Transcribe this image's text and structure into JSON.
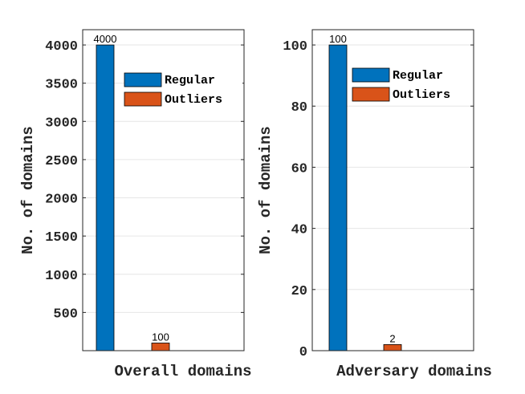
{
  "chart_data": [
    {
      "type": "bar",
      "categories": [
        "Regular",
        "Outliers"
      ],
      "values": [
        4000,
        100
      ],
      "data_labels": [
        "4000",
        "100"
      ],
      "series": [
        {
          "name": "Regular",
          "values": [
            4000,
            null
          ],
          "color": "#0072BD"
        },
        {
          "name": "Outliers",
          "values": [
            null,
            100
          ],
          "color": "#D95319"
        }
      ],
      "title": "",
      "xlabel": "Overall domains",
      "ylabel": "No. of domains",
      "ylim": [
        0,
        4200
      ],
      "yticks": [
        500,
        1000,
        1500,
        2000,
        2500,
        3000,
        3500,
        4000
      ],
      "ytick_labels": [
        "500",
        "1000",
        "1500",
        "2000",
        "2500",
        "3000",
        "3500",
        "4000"
      ],
      "grid": "horizontal",
      "legend": {
        "placement": "top-right",
        "entries": [
          "Regular",
          "Outliers"
        ]
      }
    },
    {
      "type": "bar",
      "categories": [
        "Regular",
        "Outliers"
      ],
      "values": [
        100,
        2
      ],
      "data_labels": [
        "100",
        "2"
      ],
      "series": [
        {
          "name": "Regular",
          "values": [
            100,
            null
          ],
          "color": "#0072BD"
        },
        {
          "name": "Outliers",
          "values": [
            null,
            2
          ],
          "color": "#D95319"
        }
      ],
      "title": "",
      "xlabel": "Adversary domains",
      "ylabel": "No. of domains",
      "ylim": [
        0,
        105
      ],
      "yticks": [
        0,
        20,
        40,
        60,
        80,
        100
      ],
      "ytick_labels": [
        "0",
        "20",
        "40",
        "60",
        "80",
        "100"
      ],
      "grid": "horizontal",
      "legend": {
        "placement": "top-right",
        "entries": [
          "Regular",
          "Outliers"
        ]
      }
    }
  ]
}
